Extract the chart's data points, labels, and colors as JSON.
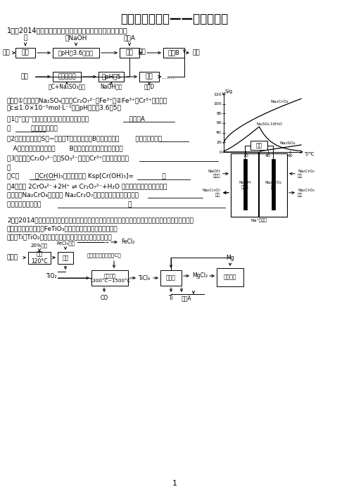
{
  "title": "广东各市模拟试——化工流程题",
  "bg": "#ffffff",
  "q1_intro": "1．（2014深一模）从化工厂铬渣中提取硫酸钠的工艺如下：",
  "q2_intro1": "2．（2014华附四校联考）钛有强度高和质地轻的优点，广泛应用于飞机制造业等。工业上利用钛铁矿，其",
  "q2_intro2": "主要成分为钛酸亚铁（FeTiO₃）制备钛金属，工业流程如下：",
  "q2_known": "已知：Ti与TiO₂化学性质稳定，不溶于稀硫酸、稀盐酸等。",
  "known1": "已知：①铬渣含有Na₂SO₄及少量Cr₂O₇²⁻、Fe³⁺；②Fe³⁺、Cr³⁺完全沉淀",
  "known2": "（c≤1.0×10⁻⁵mol·L⁻¹）时pH分别为3.6和5。",
  "q1_text": "（1）\"微热\"除能加快反应速率外，同时还可以                    ，滤渣A",
  "q1b_text": "为          （填化学式）。",
  "q2_text": "（2）根据溶解度（S）~温度（T）曲线，操作B的最佳方法为        （填字母序号）",
  "q2a_text": "   A．蒸发浓缩，趁热过滤       B．蒸发浓缩，降温结晶，过滤",
  "q3_text": "（3）酸化后Cr₂O₇²⁻可被SO₃²⁻还原成Cr³⁺，离子方程式为                    ",
  "q3_text2": "；",
  "q4_pre": "酸C为        ，Cr(OH)₃的溶度积常数 Ksp[Cr(OH)₃]=              。",
  "q4_text1": "（4）根据 2CrO₄²⁻+2H⁺ ⇌ Cr₂O₇²⁻+H₂O 设计图示装置（均为惰性电",
  "q4_text2": "极）电解Na₂CrO₄溶液制收 Na₂Cr₂O₇，图中右侧电极连接电源的        ",
  "q4_text3": "极，其电极反应式为                                           。"
}
